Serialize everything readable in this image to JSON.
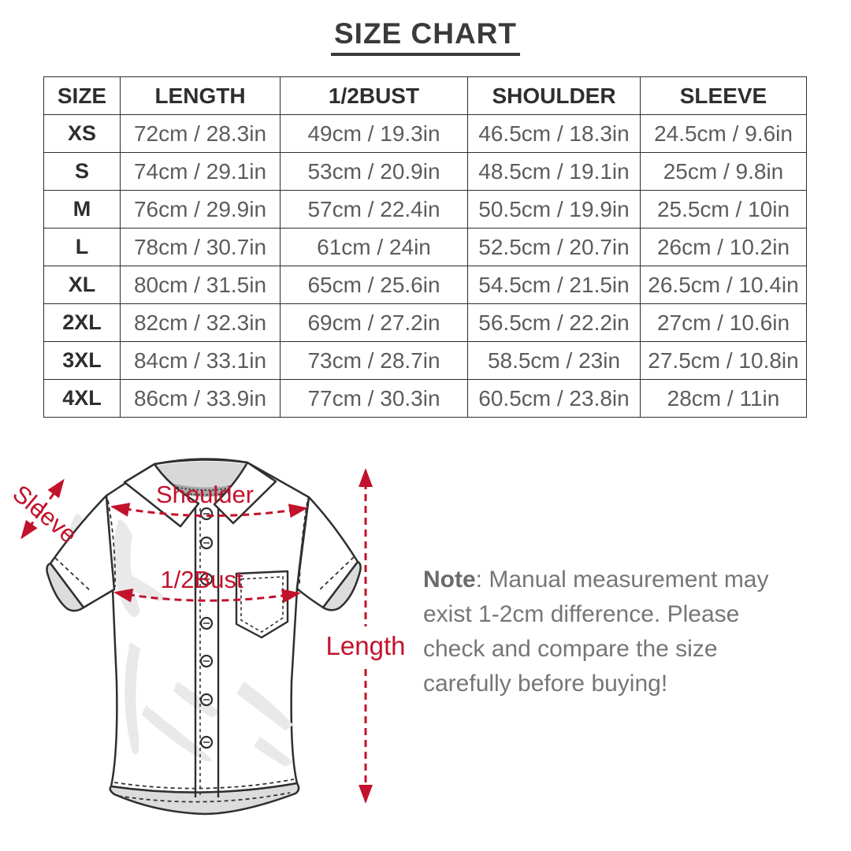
{
  "title": "SIZE CHART",
  "table": {
    "headers": [
      "SIZE",
      "LENGTH",
      "1/2BUST",
      "SHOULDER",
      "SLEEVE"
    ],
    "rows": [
      [
        "XS",
        "72cm / 28.3in",
        "49cm / 19.3in",
        "46.5cm / 18.3in",
        "24.5cm / 9.6in"
      ],
      [
        "S",
        "74cm / 29.1in",
        "53cm / 20.9in",
        "48.5cm / 19.1in",
        "25cm / 9.8in"
      ],
      [
        "M",
        "76cm / 29.9in",
        "57cm / 22.4in",
        "50.5cm / 19.9in",
        "25.5cm / 10in"
      ],
      [
        "L",
        "78cm / 30.7in",
        "61cm / 24in",
        "52.5cm / 20.7in",
        "26cm / 10.2in"
      ],
      [
        "XL",
        "80cm / 31.5in",
        "65cm / 25.6in",
        "54.5cm / 21.5in",
        "26.5cm / 10.4in"
      ],
      [
        "2XL",
        "82cm / 32.3in",
        "69cm / 27.2in",
        "56.5cm / 22.2in",
        "27cm / 10.6in"
      ],
      [
        "3XL",
        "84cm / 33.1in",
        "73cm / 28.7in",
        "58.5cm / 23in",
        "27.5cm / 10.8in"
      ],
      [
        "4XL",
        "86cm / 33.9in",
        "77cm / 30.3in",
        "60.5cm / 23.8in",
        "28cm / 11in"
      ]
    ]
  },
  "diagram": {
    "labels": {
      "sleeve": "Sleeve",
      "shoulder": "Shoulder",
      "bust": "1/2Bust",
      "length": "Length"
    },
    "accent_color": "#c3122b"
  },
  "note": {
    "label": "Note",
    "text": ": Manual measurement may\nexist 1-2cm difference. Please\ncheck and compare the size\ncarefully before buying!"
  }
}
